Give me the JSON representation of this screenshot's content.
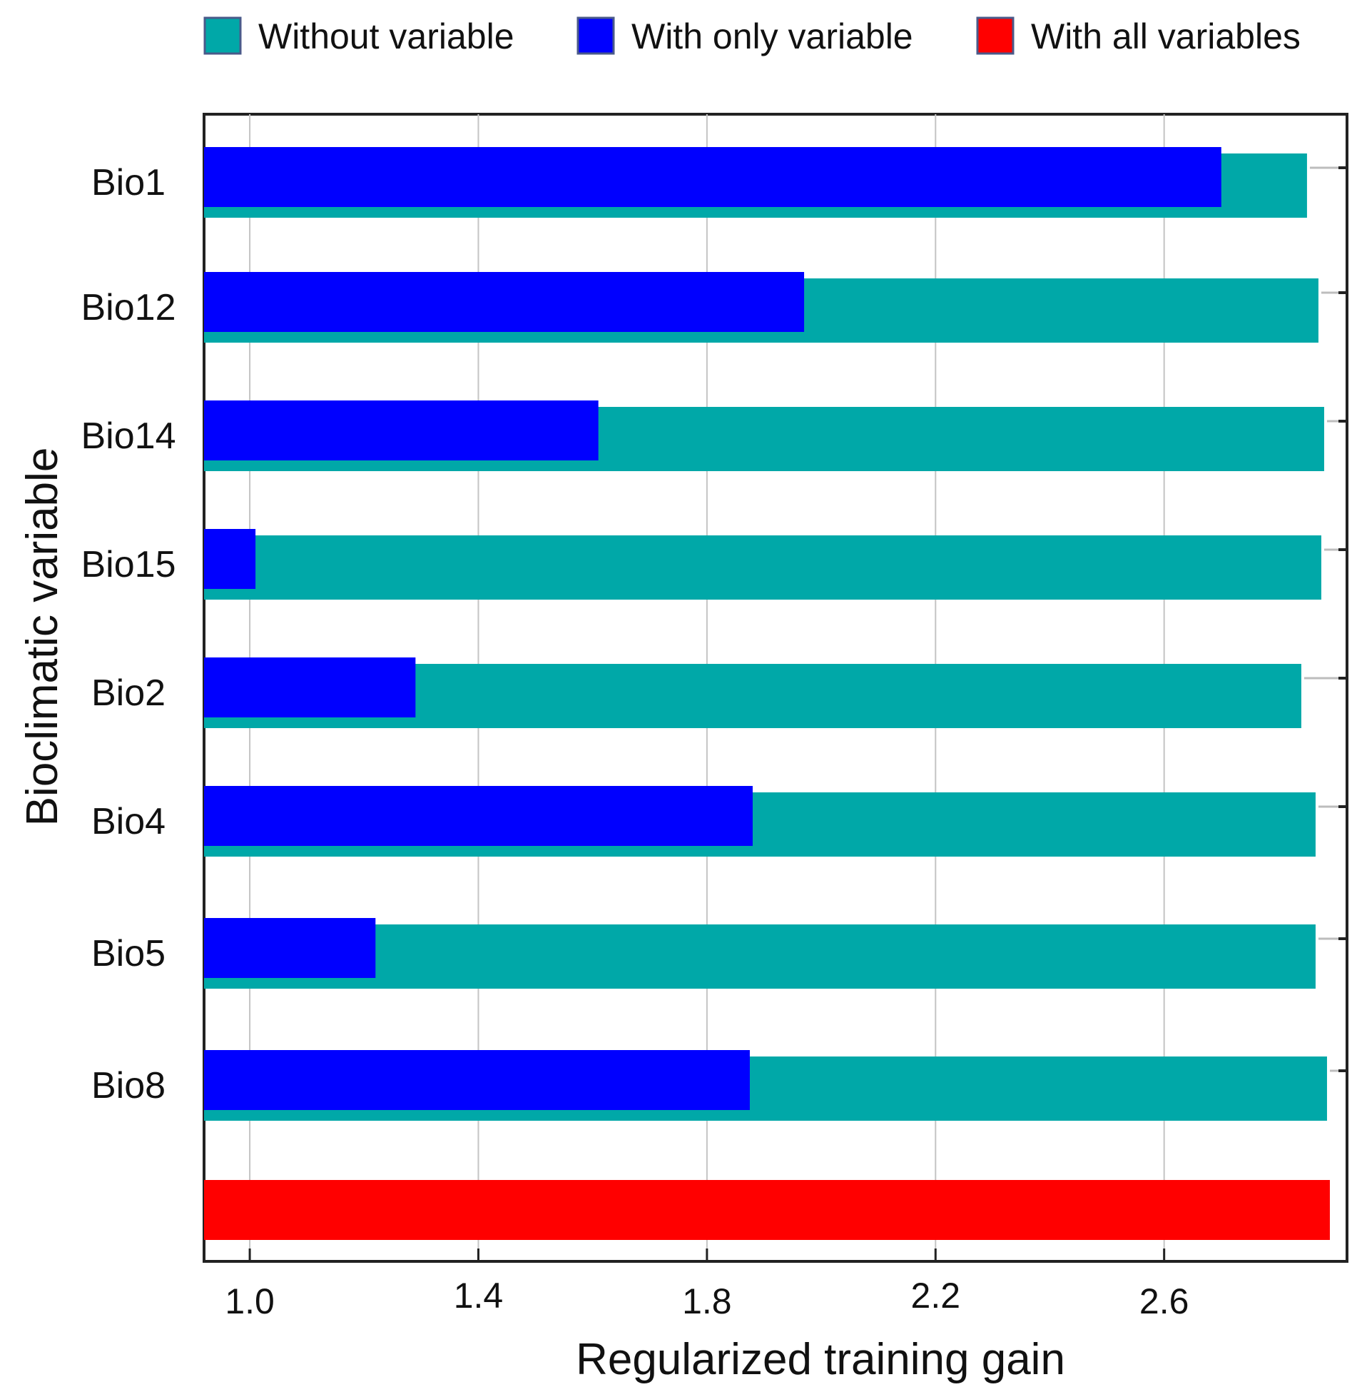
{
  "chart_data": {
    "type": "bar",
    "orientation": "horizontal",
    "title": "",
    "xlabel": "Regularized training gain",
    "ylabel": "Bioclimatic variable",
    "xlim": [
      0.92,
      2.92
    ],
    "xticks": [
      "1.0",
      "1.4",
      "1.8",
      "2.2",
      "2.6"
    ],
    "grid": true,
    "legend_position": "top",
    "legend": [
      "Without variable",
      "With only variable",
      "With all variables"
    ],
    "categories": [
      "Bio1",
      "Bio12",
      "Bio14",
      "Bio15",
      "Bio2",
      "Bio4",
      "Bio5",
      "Bio8"
    ],
    "series": [
      {
        "name": "Without variable",
        "color": "#00A8A8",
        "values": [
          2.85,
          2.87,
          2.88,
          2.875,
          2.84,
          2.865,
          2.865,
          2.885
        ]
      },
      {
        "name": "With only variable",
        "color": "#0000FF",
        "values": [
          2.7,
          1.97,
          1.61,
          1.01,
          1.29,
          1.88,
          1.22,
          1.875
        ]
      }
    ],
    "all_variables": {
      "name": "With all variables",
      "color": "#FF0000",
      "value": 2.89
    }
  }
}
